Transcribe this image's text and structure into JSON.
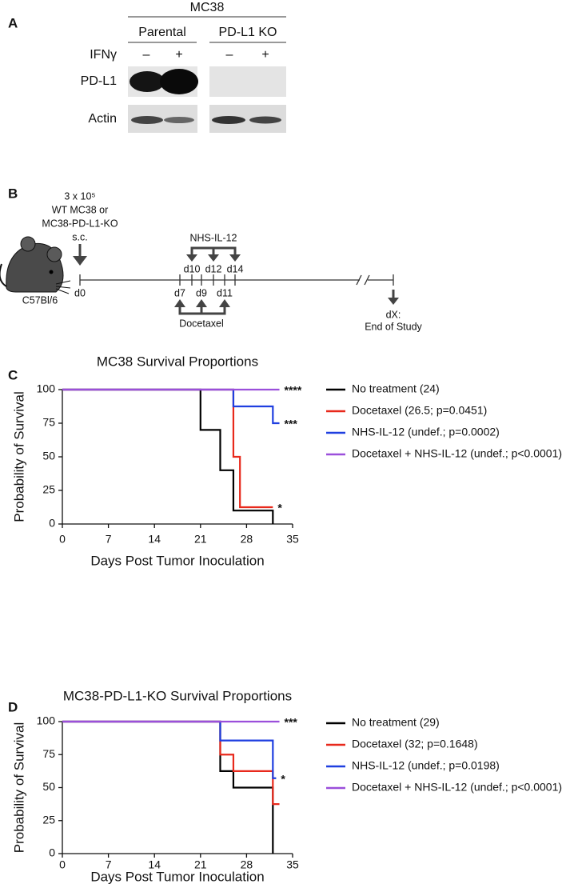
{
  "panel_a": {
    "label": "A",
    "line": "MC38",
    "groups": [
      "Parental",
      "PD-L1 KO"
    ],
    "treatment": "IFNγ",
    "conditions": [
      "–",
      "+",
      "–",
      "+"
    ],
    "rows": [
      "PD-L1",
      "Actin"
    ]
  },
  "panel_b": {
    "label": "B",
    "cells": [
      "3 x 10⁵",
      "WT MC38 or",
      "MC38-PD-L1-KO",
      "s.c."
    ],
    "mouse": "C57Bl/6",
    "drug1": "NHS-IL-12",
    "drug2": "Docetaxel",
    "days_top": [
      "d10",
      "d12",
      "d14"
    ],
    "days_bottom": [
      "d7",
      "d9",
      "d11"
    ],
    "start": "d0",
    "end": [
      "dX:",
      "End of Study"
    ]
  },
  "chart_data": [
    {
      "type": "step",
      "panel": "C",
      "title": "MC38 Survival Proportions",
      "xlabel": "Days Post Tumor Inoculation",
      "ylabel": "Probability of Survival",
      "xlim": [
        0,
        35
      ],
      "xticks": [
        0,
        7,
        14,
        21,
        28,
        35
      ],
      "ylim": [
        0,
        100
      ],
      "yticks": [
        0,
        25,
        50,
        75,
        100
      ],
      "series": [
        {
          "name": "No treatment (24)",
          "color": "#000000",
          "x": [
            0,
            21,
            24,
            26,
            32
          ],
          "values": [
            100,
            70,
            40,
            10,
            0
          ]
        },
        {
          "name": "Docetaxel (26.5; p=0.0451)",
          "color": "#e8291c",
          "x": [
            0,
            26,
            27,
            32
          ],
          "values": [
            100,
            50,
            12.5,
            12.5
          ],
          "annotation": "*"
        },
        {
          "name": "NHS-IL-12 (undef.; p=0.0002)",
          "color": "#1f3fe0",
          "x": [
            0,
            26,
            32,
            33
          ],
          "values": [
            100,
            87.5,
            75,
            75
          ],
          "annotation": "***"
        },
        {
          "name": "Docetaxel + NHS-IL-12 (undef.; p<0.0001)",
          "color": "#9b4fdb",
          "x": [
            0,
            33
          ],
          "values": [
            100,
            100
          ],
          "annotation": "****"
        }
      ]
    },
    {
      "type": "step",
      "panel": "D",
      "title": "MC38-PD-L1-KO Survival Proportions",
      "xlabel": "Days Post Tumor Inoculation",
      "ylabel": "Probability of Survival",
      "xlim": [
        0,
        35
      ],
      "xticks": [
        0,
        7,
        14,
        21,
        28,
        35
      ],
      "ylim": [
        0,
        100
      ],
      "yticks": [
        0,
        25,
        50,
        75,
        100
      ],
      "series": [
        {
          "name": "No treatment (29)",
          "color": "#000000",
          "x": [
            0,
            24,
            26,
            32
          ],
          "values": [
            100,
            62.5,
            50,
            0
          ]
        },
        {
          "name": "Docetaxel (32; p=0.1648)",
          "color": "#e8291c",
          "x": [
            0,
            24,
            26,
            32,
            33
          ],
          "values": [
            100,
            75,
            62.5,
            37.5,
            37.5
          ]
        },
        {
          "name": "NHS-IL-12 (undef.; p=0.0198)",
          "color": "#1f3fe0",
          "x": [
            0,
            24,
            32,
            32.5
          ],
          "values": [
            100,
            85.7,
            57.1,
            57.1
          ],
          "annotation": "*"
        },
        {
          "name": "Docetaxel + NHS-IL-12 (undef.; p<0.0001)",
          "color": "#9b4fdb",
          "x": [
            0,
            33
          ],
          "values": [
            100,
            100
          ],
          "annotation": "***"
        }
      ]
    }
  ]
}
